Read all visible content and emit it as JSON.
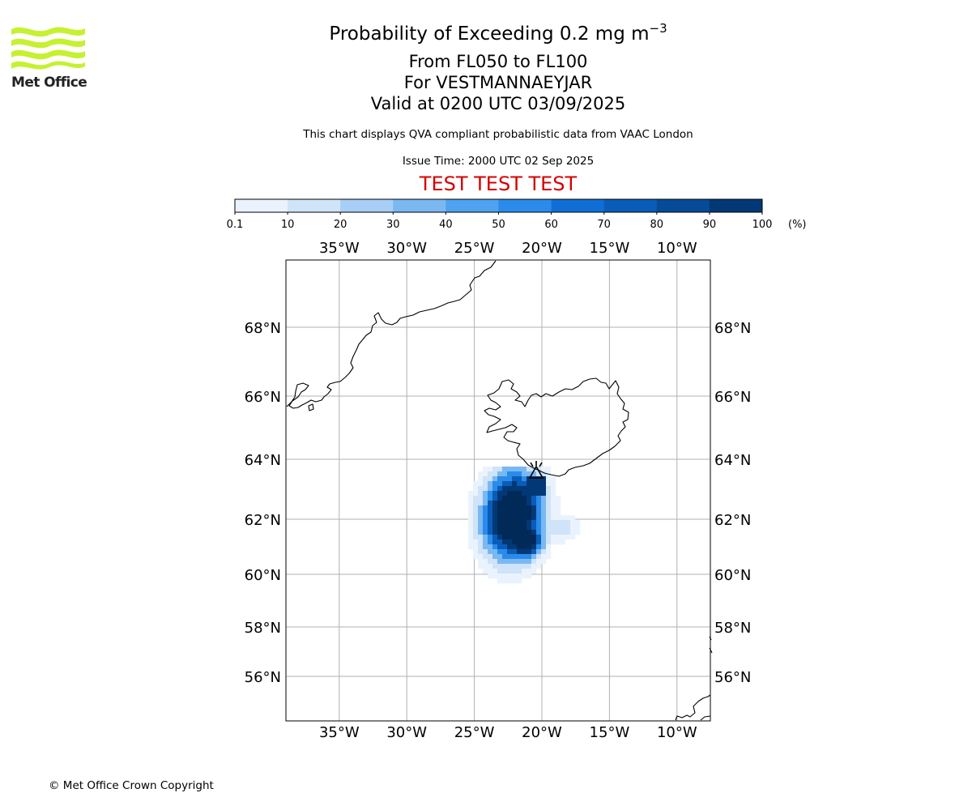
{
  "logo": {
    "text": "Met Office"
  },
  "title": {
    "main": "Probability of Exceeding 0.2 mg m",
    "main_exponent": "−3",
    "levels": "From FL050 to FL100",
    "location": "For VESTMANNAEYJAR",
    "valid": "Valid at 0200 UTC 03/09/2025"
  },
  "subtitle": "This chart displays QVA compliant probabilistic data from VAAC London",
  "issue_time": "Issue Time: 2000 UTC 02 Sep 2025",
  "test_banner": "TEST TEST TEST",
  "colorbar": {
    "unit": "(%)",
    "ticks": [
      "0.1",
      "10",
      "20",
      "30",
      "40",
      "50",
      "60",
      "70",
      "80",
      "90",
      "100"
    ],
    "colors": [
      "#eaf3fd",
      "#cfe3f9",
      "#a8cef5",
      "#7ab8f2",
      "#4ea2ef",
      "#2a8beb",
      "#0f6fd6",
      "#095db9",
      "#064b98",
      "#033876",
      "#012a59"
    ]
  },
  "map": {
    "lon_labels": [
      "35°W",
      "30°W",
      "25°W",
      "20°W",
      "15°W",
      "10°W"
    ],
    "lon_values": [
      -35,
      -30,
      -25,
      -20,
      -15,
      -10
    ],
    "lat_labels": [
      "68°N",
      "66°N",
      "64°N",
      "62°N",
      "60°N",
      "58°N",
      "56°N"
    ],
    "lat_values": [
      68,
      66,
      64,
      62,
      60,
      58,
      56
    ],
    "source_marker": "volcano-symbol"
  },
  "copyright": "© Met Office Crown Copyright"
}
